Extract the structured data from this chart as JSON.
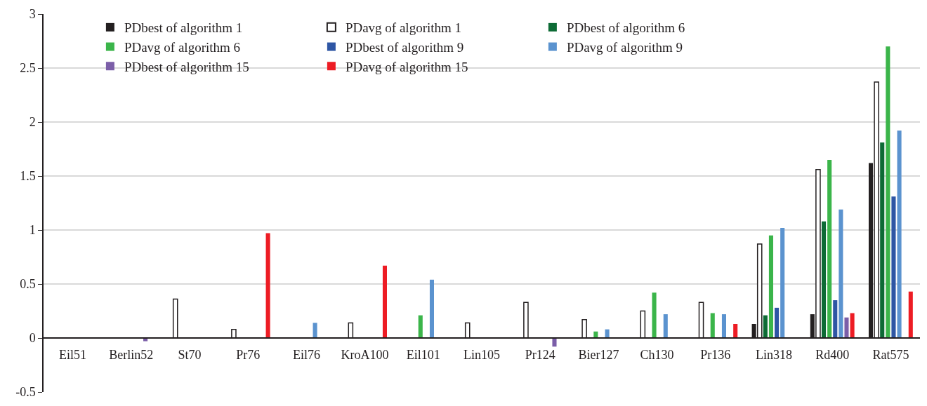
{
  "chart_data": {
    "type": "bar",
    "categories": [
      "Eil51",
      "Berlin52",
      "St70",
      "Pr76",
      "Eil76",
      "KroA100",
      "Eil101",
      "Lin105",
      "Pr124",
      "Bier127",
      "Ch130",
      "Pr136",
      "Lin318",
      "Rd400",
      "Rat575"
    ],
    "series": [
      {
        "name": "PDbest of algorithm 1",
        "color": "#231f20",
        "values": [
          0,
          0,
          0,
          0,
          0,
          0,
          0,
          0,
          0,
          0,
          0,
          0,
          0.13,
          0.22,
          1.62
        ]
      },
      {
        "name": "PDavg of algorithm 1",
        "color": "#ffffff",
        "values": [
          0,
          0,
          0.36,
          0.08,
          0,
          0.14,
          0,
          0.14,
          0.33,
          0.17,
          0.25,
          0.33,
          0.87,
          1.56,
          2.37
        ]
      },
      {
        "name": "PDbest of algorithm 6",
        "color": "#0d6b35",
        "values": [
          0,
          0,
          0,
          0,
          0,
          0,
          0,
          0,
          0,
          0,
          0,
          0,
          0.21,
          1.08,
          1.81
        ]
      },
      {
        "name": "PDavg of algorithm 6",
        "color": "#3bb54a",
        "values": [
          0,
          0,
          0,
          0,
          0,
          0,
          0.21,
          0,
          0,
          0.06,
          0.42,
          0.23,
          0.95,
          1.65,
          2.7
        ]
      },
      {
        "name": "PDbest of algorithm 9",
        "color": "#2e56a4",
        "values": [
          0,
          0,
          0,
          0,
          0,
          0,
          0,
          0,
          0,
          0,
          0,
          0,
          0.28,
          0.35,
          1.31
        ]
      },
      {
        "name": "PDavg of algorithm 9",
        "color": "#5b93cf",
        "values": [
          0,
          0,
          0,
          0,
          0.14,
          0,
          0.54,
          0,
          0,
          0.08,
          0.22,
          0.22,
          1.02,
          1.19,
          1.92
        ]
      },
      {
        "name": "PDbest of algorithm 15",
        "color": "#7b5ea8",
        "values": [
          0,
          -0.03,
          0,
          0,
          0,
          0,
          0,
          0,
          -0.08,
          0,
          0,
          0,
          0,
          0.19,
          0
        ]
      },
      {
        "name": "PDavg of algorithm 15",
        "color": "#ed1c24",
        "values": [
          0,
          0,
          0,
          0.97,
          0,
          0.67,
          0,
          0,
          0,
          0,
          0,
          0.13,
          0,
          0.23,
          0.43
        ]
      }
    ],
    "ylim": [
      -0.5,
      3
    ],
    "yticks": [
      {
        "value": -0.5,
        "label": "-0.5"
      },
      0,
      0.5,
      1,
      1.5,
      2,
      2.5,
      3
    ],
    "grid": "y",
    "legend": "top left"
  }
}
